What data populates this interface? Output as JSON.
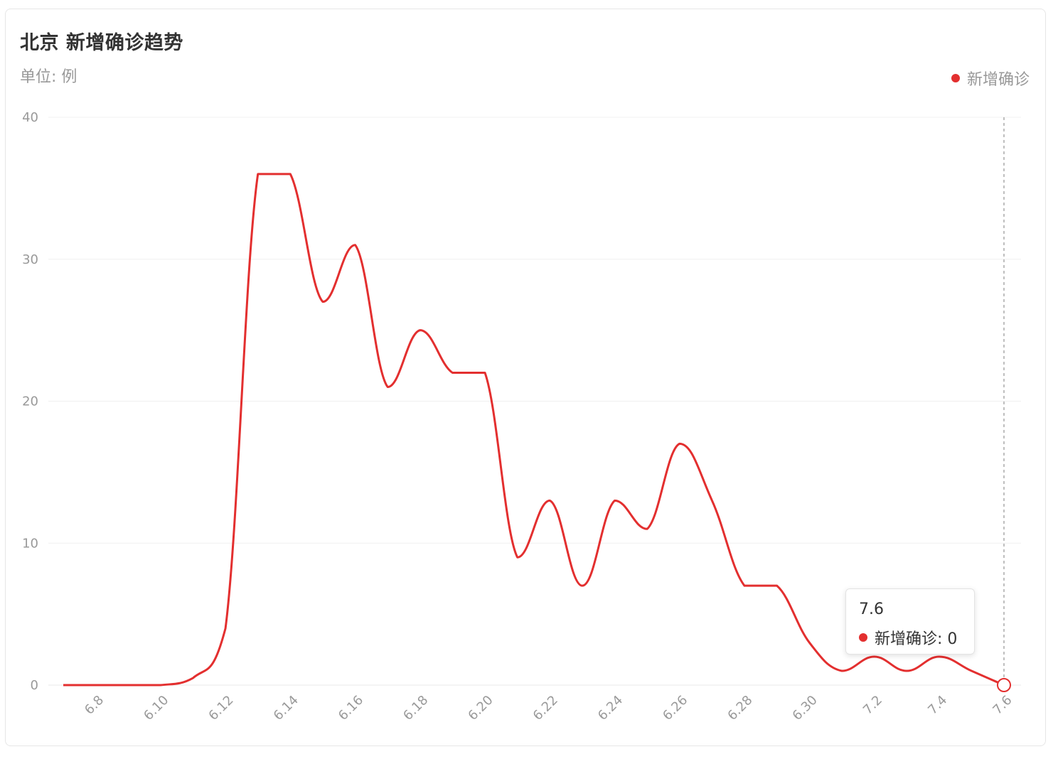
{
  "header": {
    "title": "北京 新增确诊趋势",
    "unit": "单位: 例"
  },
  "colors": {
    "series": "#e32f2f",
    "grid": "#f0f0f0",
    "axis_text": "#999999"
  },
  "chart_data": {
    "type": "line",
    "x": [
      "6.7",
      "6.8",
      "6.9",
      "6.10",
      "6.11",
      "6.12",
      "6.13",
      "6.14",
      "6.15",
      "6.16",
      "6.17",
      "6.18",
      "6.19",
      "6.20",
      "6.21",
      "6.22",
      "6.23",
      "6.24",
      "6.25",
      "6.26",
      "6.27",
      "6.28",
      "6.29",
      "6.30",
      "7.1",
      "7.2",
      "7.3",
      "7.4",
      "7.5",
      "7.6"
    ],
    "x_tick_labels": [
      "6.8",
      "6.10",
      "6.12",
      "6.14",
      "6.16",
      "6.18",
      "6.20",
      "6.22",
      "6.24",
      "6.26",
      "6.28",
      "6.30",
      "7.2",
      "7.4",
      "7.6"
    ],
    "series": [
      {
        "name": "新增确诊",
        "values": [
          0,
          0,
          0,
          0,
          0.5,
          4,
          36,
          36,
          27,
          31,
          21,
          25,
          22,
          22,
          9,
          13,
          7,
          13,
          11,
          17,
          13,
          7,
          7,
          3,
          1,
          2,
          1,
          2,
          1,
          0
        ]
      }
    ],
    "ylim": [
      0,
      40
    ],
    "yticks": [
      0,
      10,
      20,
      30,
      40
    ],
    "legend_position": "top-right",
    "grid": true
  },
  "tooltip": {
    "title": "7.6",
    "label": "新增确诊: 0"
  }
}
